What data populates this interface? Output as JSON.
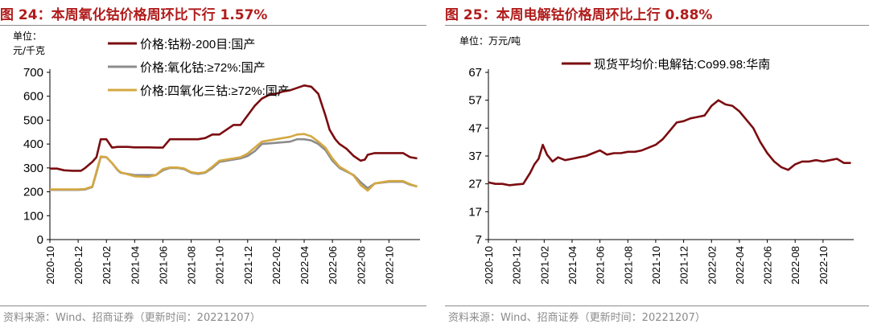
{
  "charts": [
    {
      "title": "图 24：本周氧化钴价格周环比下行 1.57%",
      "unit_line1": "单位：",
      "unit_line2": "元/千克",
      "source": "资料来源：Wind、招商证券（更新时间：20221207）",
      "colors": {
        "series1": "#7b0c10",
        "series2": "#8c8c8c",
        "series3": "#d4a842"
      }
    },
    {
      "title": "图 25：本周电解钴价格周环比上行 0.88%",
      "unit_line1": "单位：万元/吨",
      "source": "资料来源：Wind、招商证券（更新时间：20221207）",
      "colors": {
        "series1": "#7b0c10"
      }
    }
  ],
  "chart_data": [
    {
      "type": "line",
      "title": "本周氧化钴价格周环比下行1.57%",
      "ylabel": "元/千克",
      "ylim": [
        0,
        700
      ],
      "yticks": [
        "0",
        "100",
        "200",
        "300",
        "400",
        "500",
        "600",
        "700"
      ],
      "xlim": [
        0,
        26.2
      ],
      "xticks": [
        "2020-10",
        "2020-12",
        "2021-02",
        "2021-04",
        "2021-06",
        "2021-08",
        "2021-10",
        "2021-12",
        "2022-02",
        "2022-04",
        "2022-06",
        "2022-08",
        "2022-10"
      ],
      "legend_position": "top-left",
      "series": [
        {
          "name": "价格:钴粉-200目:国产",
          "color": "#7b0c10",
          "x": [
            0.0,
            0.5,
            1.0,
            1.6,
            2.2,
            2.5,
            3.0,
            3.3,
            3.6,
            4.0,
            4.4,
            4.8,
            5.0,
            5.5,
            6.0,
            6.5,
            7.0,
            7.5,
            8.0,
            8.5,
            9.0,
            9.5,
            10.0,
            10.5,
            11.0,
            11.5,
            12.0,
            12.5,
            13.0,
            13.5,
            14.0,
            14.5,
            15.0,
            15.5,
            16.0,
            16.5,
            17.0,
            17.5,
            18.0,
            18.5,
            19.0,
            19.5,
            19.8,
            20.2,
            20.5,
            21.0,
            21.5,
            22.0,
            22.3,
            22.5,
            23.0,
            23.5,
            24.0,
            24.5,
            25.0,
            25.5,
            26.0
          ],
          "values": [
            297,
            297,
            290,
            288,
            288,
            300,
            325,
            345,
            420,
            420,
            385,
            388,
            388,
            388,
            386,
            386,
            386,
            385,
            385,
            420,
            420,
            420,
            420,
            420,
            425,
            440,
            440,
            460,
            480,
            480,
            520,
            560,
            590,
            605,
            610,
            620,
            625,
            635,
            645,
            640,
            610,
            520,
            460,
            420,
            400,
            380,
            350,
            330,
            335,
            355,
            362,
            362,
            362,
            362,
            362,
            345,
            340
          ]
        },
        {
          "name": "价格:氧化钴:≥72%:国产",
          "color": "#8c8c8c",
          "x": [
            0.0,
            1.0,
            2.0,
            2.5,
            3.0,
            3.3,
            3.6,
            4.0,
            4.4,
            4.8,
            5.0,
            6.0,
            7.0,
            7.5,
            8.0,
            8.5,
            9.0,
            9.5,
            10.0,
            10.5,
            11.0,
            11.5,
            12.0,
            13.0,
            13.5,
            14.0,
            14.5,
            15.0,
            16.0,
            17.0,
            17.5,
            18.0,
            18.5,
            19.0,
            19.5,
            20.0,
            20.5,
            21.0,
            21.5,
            22.0,
            22.5,
            23.0,
            24.0,
            25.0,
            25.5,
            26.0
          ],
          "values": [
            208,
            208,
            208,
            210,
            220,
            280,
            345,
            345,
            320,
            290,
            280,
            270,
            270,
            270,
            290,
            300,
            300,
            295,
            280,
            275,
            280,
            300,
            325,
            335,
            340,
            350,
            370,
            400,
            405,
            410,
            420,
            420,
            415,
            400,
            375,
            330,
            300,
            285,
            270,
            240,
            215,
            235,
            242,
            242,
            230,
            222
          ]
        },
        {
          "name": "价格:四氧化三钴:≥72%:国产",
          "color": "#d4a842",
          "x": [
            0.0,
            1.0,
            2.0,
            2.5,
            3.0,
            3.3,
            3.6,
            4.0,
            4.4,
            4.8,
            5.0,
            6.0,
            7.0,
            7.5,
            8.0,
            8.5,
            9.0,
            9.5,
            10.0,
            10.5,
            11.0,
            11.5,
            12.0,
            13.0,
            13.5,
            14.0,
            14.5,
            15.0,
            16.0,
            17.0,
            17.5,
            18.0,
            18.5,
            19.0,
            19.5,
            20.0,
            20.5,
            21.0,
            21.5,
            22.0,
            22.5,
            23.0,
            24.0,
            25.0,
            25.5,
            26.0
          ],
          "values": [
            210,
            210,
            210,
            212,
            222,
            285,
            348,
            345,
            320,
            292,
            282,
            265,
            263,
            270,
            295,
            302,
            302,
            298,
            282,
            278,
            282,
            305,
            330,
            340,
            345,
            360,
            385,
            410,
            420,
            430,
            440,
            442,
            432,
            410,
            385,
            340,
            305,
            288,
            268,
            228,
            205,
            235,
            245,
            245,
            232,
            222
          ]
        }
      ]
    },
    {
      "type": "line",
      "title": "本周电解钴价格周环比上行0.88%",
      "ylabel": "万元/吨",
      "ylim": [
        7,
        67
      ],
      "yticks": [
        "7",
        "17",
        "27",
        "37",
        "47",
        "57",
        "67"
      ],
      "xlim": [
        0,
        26.2
      ],
      "xticks": [
        "2020-10",
        "2020-12",
        "2021-02",
        "2021-04",
        "2021-06",
        "2021-08",
        "2021-10",
        "2021-12",
        "2022-02",
        "2022-04",
        "2022-06",
        "2022-08",
        "2022-10"
      ],
      "legend_position": "top-center",
      "series": [
        {
          "name": "现货平均价:电解钴:Co99.98:华南",
          "color": "#7b0c10",
          "x": [
            0.0,
            0.5,
            1.0,
            1.5,
            2.0,
            2.5,
            3.0,
            3.3,
            3.6,
            3.9,
            4.2,
            4.6,
            5.0,
            5.5,
            6.0,
            6.5,
            7.0,
            7.5,
            8.0,
            8.5,
            9.0,
            9.5,
            10.0,
            10.5,
            11.0,
            11.5,
            12.0,
            12.5,
            13.0,
            13.5,
            14.0,
            14.5,
            15.0,
            15.5,
            16.0,
            16.5,
            17.0,
            17.5,
            18.0,
            18.5,
            19.0,
            19.5,
            20.0,
            20.5,
            21.0,
            21.5,
            22.0,
            22.5,
            23.0,
            23.5,
            24.0,
            24.5,
            25.0,
            25.5,
            26.0
          ],
          "values": [
            27.5,
            27,
            27,
            26.5,
            26.8,
            27,
            31,
            34,
            36,
            41,
            37.5,
            35,
            36.5,
            35.5,
            36,
            36.5,
            37,
            38,
            39,
            37.5,
            38,
            38,
            38.5,
            38.5,
            39,
            40,
            41,
            43,
            46,
            49,
            49.5,
            50.5,
            51,
            51.5,
            55,
            57,
            55.5,
            55,
            53,
            50,
            47,
            42,
            38,
            35,
            33,
            32,
            34,
            35,
            35,
            35.5,
            35,
            35.5,
            36,
            34.5,
            34.5
          ]
        }
      ]
    }
  ]
}
